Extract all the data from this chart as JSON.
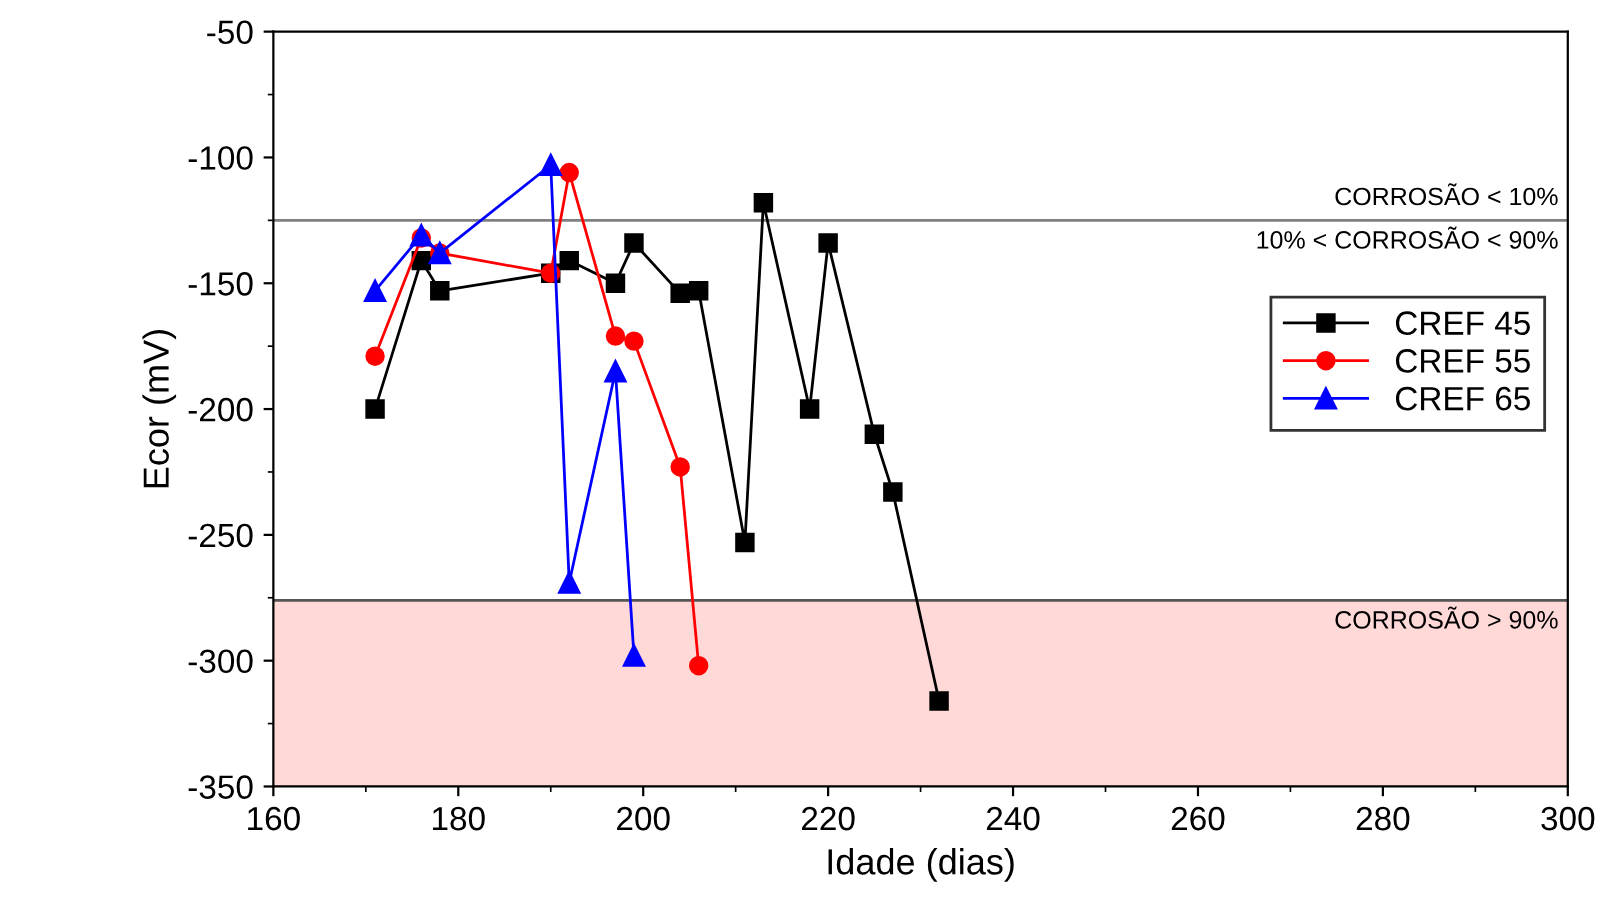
{
  "chart_data": {
    "type": "line",
    "xlabel": "Idade (dias)",
    "ylabel": "Ecor (mV)",
    "xlim": [
      160,
      300
    ],
    "xticks": [
      160,
      180,
      200,
      220,
      240,
      260,
      280,
      300
    ],
    "ylim": [
      -350,
      -50
    ],
    "yticks": [
      -350,
      -300,
      -250,
      -200,
      -150,
      -100,
      -50
    ],
    "grid": false,
    "legend": "right",
    "line_style": "solid",
    "series": [
      {
        "name": "CREF 45",
        "color": "#000000",
        "marker": "square",
        "x": [
          171,
          176,
          178,
          190,
          192,
          197,
          199,
          204,
          206,
          211,
          213,
          218,
          220,
          225,
          227,
          232
        ],
        "values": [
          -200,
          -141,
          -153,
          -146,
          -141,
          -150,
          -134,
          -154,
          -153,
          -253,
          -118,
          -200,
          -134,
          -210,
          -233,
          -316
        ]
      },
      {
        "name": "CREF 55",
        "color": "#ff0000",
        "marker": "circle",
        "x": [
          171,
          176,
          178,
          190,
          192,
          197,
          199,
          204,
          206
        ],
        "values": [
          -179,
          -132,
          -138,
          -146,
          -106,
          -171,
          -173,
          -223,
          -302
        ]
      },
      {
        "name": "CREF 65",
        "color": "#0000ff",
        "marker": "triangle",
        "x": [
          171,
          176,
          178,
          190,
          192,
          197,
          199
        ],
        "values": [
          -153,
          -131,
          -138,
          -103,
          -269,
          -185,
          -298
        ]
      }
    ],
    "ref_lines": [
      {
        "axis": "y",
        "value": -125,
        "label": "CORROSÃO < 10%",
        "color": "#808080"
      },
      {
        "axis": "y",
        "value": -276,
        "color": "#555555"
      }
    ],
    "bands": [
      {
        "axis": "y",
        "from": -350,
        "to": -276,
        "label": "CORROSÃO > 90%",
        "color": "#ffd8d8"
      }
    ],
    "annotations": [
      {
        "text": "10% < CORROSÃO < 90%",
        "x": 300,
        "y": -125
      }
    ]
  }
}
